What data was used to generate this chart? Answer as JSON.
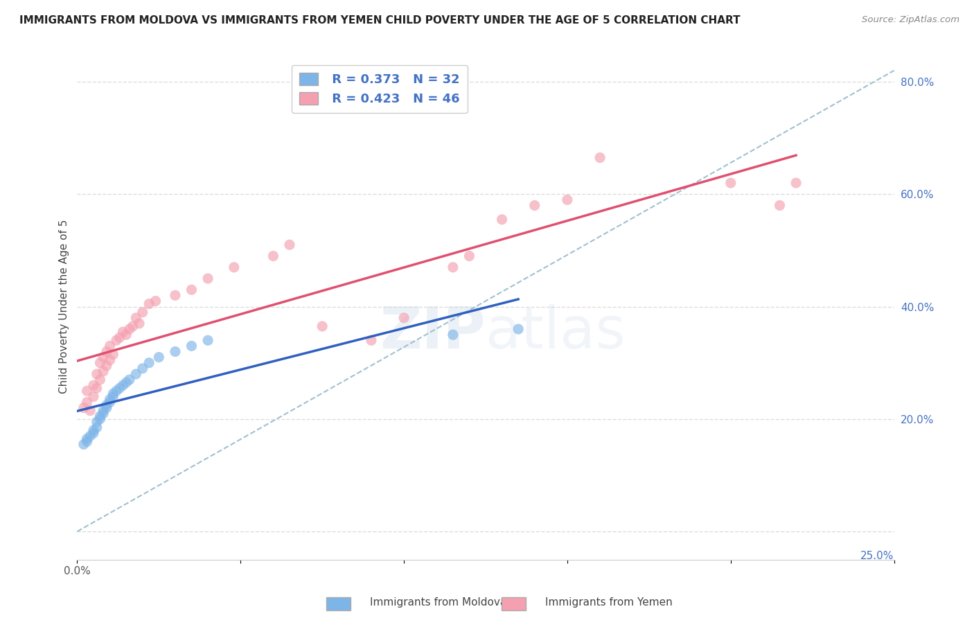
{
  "title": "IMMIGRANTS FROM MOLDOVA VS IMMIGRANTS FROM YEMEN CHILD POVERTY UNDER THE AGE OF 5 CORRELATION CHART",
  "source": "Source: ZipAtlas.com",
  "ylabel": "Child Poverty Under the Age of 5",
  "xlabel_moldova": "Immigrants from Moldova",
  "xlabel_yemen": "Immigrants from Yemen",
  "legend_moldova_R": "0.373",
  "legend_moldova_N": "32",
  "legend_yemen_R": "0.423",
  "legend_yemen_N": "46",
  "xlim": [
    0.0,
    0.25
  ],
  "ylim": [
    -0.05,
    0.85
  ],
  "color_moldova": "#7EB5E8",
  "color_yemen": "#F4A0B0",
  "trendline_moldova": "#3060C0",
  "trendline_yemen": "#E05070",
  "trendline_dashed_color": "#A0C0D0",
  "moldova_x": [
    0.002,
    0.003,
    0.003,
    0.004,
    0.005,
    0.005,
    0.006,
    0.006,
    0.007,
    0.007,
    0.008,
    0.008,
    0.009,
    0.009,
    0.01,
    0.01,
    0.011,
    0.011,
    0.012,
    0.013,
    0.014,
    0.015,
    0.016,
    0.018,
    0.02,
    0.022,
    0.025,
    0.03,
    0.035,
    0.04,
    0.115,
    0.135
  ],
  "moldova_y": [
    0.155,
    0.16,
    0.165,
    0.17,
    0.175,
    0.18,
    0.185,
    0.195,
    0.2,
    0.205,
    0.21,
    0.215,
    0.22,
    0.225,
    0.23,
    0.235,
    0.24,
    0.245,
    0.25,
    0.255,
    0.26,
    0.265,
    0.27,
    0.28,
    0.29,
    0.3,
    0.31,
    0.32,
    0.33,
    0.34,
    0.35,
    0.36
  ],
  "yemen_x": [
    0.002,
    0.003,
    0.003,
    0.004,
    0.005,
    0.005,
    0.006,
    0.006,
    0.007,
    0.007,
    0.008,
    0.008,
    0.009,
    0.009,
    0.01,
    0.01,
    0.011,
    0.012,
    0.013,
    0.014,
    0.015,
    0.016,
    0.017,
    0.018,
    0.019,
    0.02,
    0.022,
    0.024,
    0.03,
    0.035,
    0.04,
    0.048,
    0.06,
    0.065,
    0.075,
    0.09,
    0.1,
    0.115,
    0.12,
    0.13,
    0.14,
    0.15,
    0.16,
    0.2,
    0.215,
    0.22
  ],
  "yemen_y": [
    0.22,
    0.23,
    0.25,
    0.215,
    0.24,
    0.26,
    0.255,
    0.28,
    0.27,
    0.3,
    0.285,
    0.31,
    0.295,
    0.32,
    0.305,
    0.33,
    0.315,
    0.34,
    0.345,
    0.355,
    0.35,
    0.36,
    0.365,
    0.38,
    0.37,
    0.39,
    0.405,
    0.41,
    0.42,
    0.43,
    0.45,
    0.47,
    0.49,
    0.51,
    0.365,
    0.34,
    0.38,
    0.47,
    0.49,
    0.555,
    0.58,
    0.59,
    0.665,
    0.62,
    0.58,
    0.62
  ]
}
